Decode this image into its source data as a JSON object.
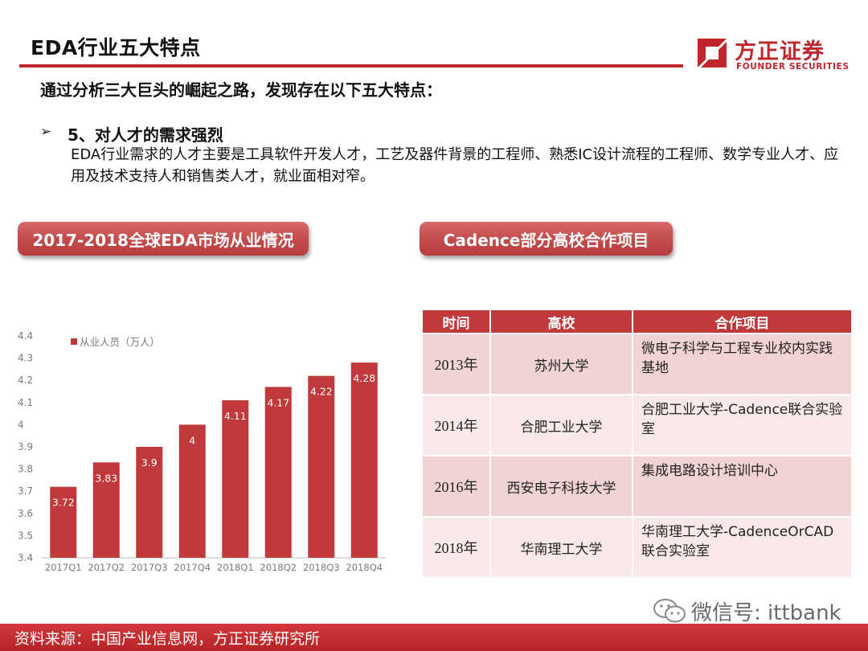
{
  "header": {
    "title": "EDA行业五大特点",
    "logo_cn": "方正证券",
    "logo_en": "FOUNDER SECURITIES",
    "brand_color": "#c0272d"
  },
  "intro": "通过分析三大巨头的崛起之路，发现存在以下五大特点：",
  "point": {
    "bullet": "➢",
    "heading": "5、对人才的需求强烈",
    "body": "EDA行业需求的人才主要是工具软件开发人才，工艺及器件背景的工程师、熟悉IC设计流程的工程师、数学专业人才、应用及技术支持人和销售类人才，就业面相对窄。"
  },
  "labels": {
    "chart": "2017-2018全球EDA市场从业情况",
    "table": "Cadence部分高校合作项目"
  },
  "chart_data": {
    "type": "bar",
    "categories": [
      "2017Q1",
      "2017Q2",
      "2017Q3",
      "2017Q4",
      "2018Q1",
      "2018Q2",
      "2018Q3",
      "2018Q4"
    ],
    "series": [
      {
        "name": "从业人员（万人）",
        "values": [
          3.72,
          3.83,
          3.9,
          4,
          4.11,
          4.17,
          4.22,
          4.28
        ]
      }
    ],
    "data_labels": [
      "3.72",
      "3.83",
      "3.9",
      "4",
      "4.11",
      "4.17",
      "4.22",
      "4.28"
    ],
    "yticks": [
      "3.4",
      "3.5",
      "3.6",
      "3.7",
      "3.8",
      "3.9",
      "4",
      "4.1",
      "4.2",
      "4.3",
      "4.4"
    ],
    "ylim": [
      3.4,
      4.4
    ],
    "grid": false,
    "legend": "top-left",
    "bar_color": "#c0393b"
  },
  "table": {
    "headers": [
      "时间",
      "高校",
      "合作项目"
    ],
    "rows": [
      {
        "year": "2013年",
        "school": "苏州大学",
        "project": "微电子科学与工程专业校内实践基地"
      },
      {
        "year": "2014年",
        "school": "合肥工业大学",
        "project": "合肥工业大学-Cadence联合实验室"
      },
      {
        "year": "2016年",
        "school": "西安电子科技大学",
        "project": "集成电路设计培训中心"
      },
      {
        "year": "2018年",
        "school": "华南理工大学",
        "project": "华南理工大学-CadenceOrCAD联合实验室"
      }
    ]
  },
  "footer": {
    "source": "资料来源：中国产业信息网，方正证券研究所"
  },
  "watermark": {
    "text": "微信号: ittbank"
  }
}
